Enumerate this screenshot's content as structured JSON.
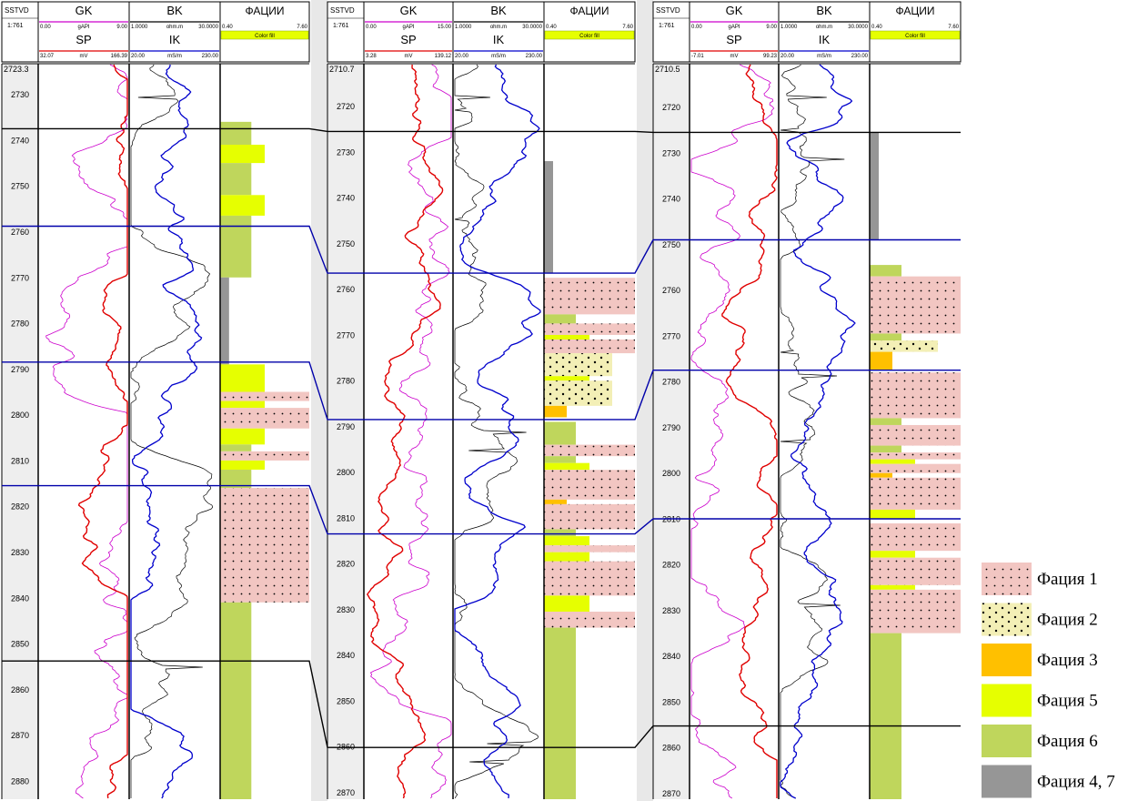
{
  "colors": {
    "gk": "#cc00cc",
    "sp": "#e00000",
    "bk": "#000000",
    "ik": "#0000cc",
    "facies_1": "#f2c6c2",
    "facies_2": "#f3efb6",
    "facies_3": "#ffc000",
    "facies_5": "#e6ff00",
    "facies_6": "#bfd65c",
    "facies_47": "#969696",
    "marker_blue": "#0000aa",
    "marker_black": "#000000",
    "gutter": "#e8e8e8",
    "header_bg": "#ffffff"
  },
  "chart_data": {
    "type": "well-log-correlation",
    "legend": [
      {
        "key": "f1",
        "label": "Фация 1",
        "pattern": "dots",
        "color": "#f2c6c2"
      },
      {
        "key": "f2",
        "label": "Фация 2",
        "pattern": "sparse-dots",
        "color": "#f3efb6"
      },
      {
        "key": "f3",
        "label": "Фация 3",
        "pattern": "solid",
        "color": "#ffc000"
      },
      {
        "key": "f5",
        "label": "Фация 5",
        "pattern": "solid",
        "color": "#e6ff00"
      },
      {
        "key": "f6",
        "label": "Фация 6",
        "pattern": "solid",
        "color": "#bfd65c"
      },
      {
        "key": "f47",
        "label": "Фация 4, 7",
        "pattern": "solid",
        "color": "#969696"
      }
    ],
    "wells": [
      {
        "depth_label": "SSTVD",
        "scale": "1:761",
        "top_depth_label": "2723.3",
        "depth_range": [
          2723.3,
          2884
        ],
        "depth_ticks": [
          2730,
          2740,
          2750,
          2760,
          2770,
          2780,
          2790,
          2800,
          2810,
          2820,
          2830,
          2840,
          2850,
          2860,
          2870,
          2880
        ],
        "curves": {
          "gk": {
            "name": "GK",
            "unit": "gAPI",
            "min": "0.00",
            "max": "9.00"
          },
          "sp": {
            "name": "SP",
            "unit": "mV",
            "min": "32.07",
            "max": "166.39"
          },
          "bk": {
            "name": "BK",
            "unit": "ohm.m",
            "min": "1.0000",
            "max": "30.0000"
          },
          "ik": {
            "name": "IK",
            "unit": "mS/m",
            "min": "20.00",
            "max": "230.00"
          }
        },
        "facies_title": "ФАЦИИ",
        "facies_min": "0.40",
        "facies_max": "7.60",
        "color_fill_label": "Color fill",
        "markers": [
          {
            "depth": 2737.5,
            "color": "black"
          },
          {
            "depth": 2758.8,
            "color": "blue"
          },
          {
            "depth": 2788.5,
            "color": "blue"
          },
          {
            "depth": 2815.5,
            "color": "blue"
          },
          {
            "depth": 2853.8,
            "color": "black"
          }
        ],
        "facies": [
          {
            "top": 2736,
            "bottom": 2741,
            "code": "f6"
          },
          {
            "top": 2741,
            "bottom": 2745,
            "code": "f5"
          },
          {
            "top": 2745,
            "bottom": 2752,
            "code": "f6"
          },
          {
            "top": 2752,
            "bottom": 2756.5,
            "code": "f5"
          },
          {
            "top": 2756.5,
            "bottom": 2770,
            "code": "f6"
          },
          {
            "top": 2770,
            "bottom": 2789,
            "code": "f47"
          },
          {
            "top": 2789,
            "bottom": 2795,
            "code": "f5"
          },
          {
            "top": 2795,
            "bottom": 2797,
            "code": "f1"
          },
          {
            "top": 2797,
            "bottom": 2798.5,
            "code": "f5"
          },
          {
            "top": 2798.5,
            "bottom": 2803,
            "code": "f1"
          },
          {
            "top": 2803,
            "bottom": 2806.5,
            "code": "f5"
          },
          {
            "top": 2806.5,
            "bottom": 2808,
            "code": "f6"
          },
          {
            "top": 2808,
            "bottom": 2810,
            "code": "f1"
          },
          {
            "top": 2810,
            "bottom": 2812,
            "code": "f5"
          },
          {
            "top": 2812,
            "bottom": 2816,
            "code": "f6"
          },
          {
            "top": 2816,
            "bottom": 2841,
            "code": "f1"
          },
          {
            "top": 2841,
            "bottom": 2884,
            "code": "f6"
          }
        ]
      },
      {
        "depth_label": "SSTVD",
        "scale": "1:761",
        "top_depth_label": "2710.7",
        "depth_range": [
          2710.7,
          2871.5
        ],
        "depth_ticks": [
          2720,
          2730,
          2740,
          2750,
          2760,
          2770,
          2780,
          2790,
          2800,
          2810,
          2820,
          2830,
          2840,
          2850,
          2860,
          2870
        ],
        "curves": {
          "gk": {
            "name": "GK",
            "unit": "gAPI",
            "min": "0.00",
            "max": "15.00"
          },
          "sp": {
            "name": "SP",
            "unit": "mV",
            "min": "3.28",
            "max": "139.12"
          },
          "bk": {
            "name": "BK",
            "unit": "ohm.m",
            "min": "1.0000",
            "max": "30.0000"
          },
          "ik": {
            "name": "IK",
            "unit": "mS/m",
            "min": "20.00",
            "max": "230.00"
          }
        },
        "facies_title": "ФАЦИИ",
        "facies_min": "0.40",
        "facies_max": "7.60",
        "color_fill_label": "Color fill",
        "markers": [
          {
            "depth": 2725.5,
            "color": "black"
          },
          {
            "depth": 2756.5,
            "color": "blue"
          },
          {
            "depth": 2788.5,
            "color": "blue"
          },
          {
            "depth": 2813.5,
            "color": "blue"
          },
          {
            "depth": 2860.2,
            "color": "black"
          }
        ],
        "facies": [
          {
            "top": 2732,
            "bottom": 2756.5,
            "code": "f47"
          },
          {
            "top": 2757.5,
            "bottom": 2765.5,
            "code": "f1"
          },
          {
            "top": 2765.5,
            "bottom": 2767.5,
            "code": "f6"
          },
          {
            "top": 2767.5,
            "bottom": 2770,
            "code": "f1"
          },
          {
            "top": 2770,
            "bottom": 2771,
            "code": "f5"
          },
          {
            "top": 2771,
            "bottom": 2774,
            "code": "f1"
          },
          {
            "top": 2774,
            "bottom": 2779,
            "code": "f2"
          },
          {
            "top": 2779,
            "bottom": 2780,
            "code": "f5"
          },
          {
            "top": 2780,
            "bottom": 2785.5,
            "code": "f2"
          },
          {
            "top": 2785.5,
            "bottom": 2788,
            "code": "f3"
          },
          {
            "top": 2789,
            "bottom": 2794,
            "code": "f6"
          },
          {
            "top": 2794,
            "bottom": 2796.5,
            "code": "f1"
          },
          {
            "top": 2796.5,
            "bottom": 2798,
            "code": "f6"
          },
          {
            "top": 2798,
            "bottom": 2799.5,
            "code": "f5"
          },
          {
            "top": 2799.5,
            "bottom": 2806,
            "code": "f1"
          },
          {
            "top": 2806,
            "bottom": 2807,
            "code": "f3"
          },
          {
            "top": 2807,
            "bottom": 2812.5,
            "code": "f1"
          },
          {
            "top": 2812.5,
            "bottom": 2814,
            "code": "f6"
          },
          {
            "top": 2814,
            "bottom": 2816,
            "code": "f5"
          },
          {
            "top": 2816,
            "bottom": 2817.5,
            "code": "f1"
          },
          {
            "top": 2817.5,
            "bottom": 2819.5,
            "code": "f5"
          },
          {
            "top": 2819.5,
            "bottom": 2827,
            "code": "f1"
          },
          {
            "top": 2827,
            "bottom": 2830.5,
            "code": "f5"
          },
          {
            "top": 2830.5,
            "bottom": 2834,
            "code": "f1"
          },
          {
            "top": 2834,
            "bottom": 2871.5,
            "code": "f6"
          }
        ]
      },
      {
        "depth_label": "SSTVD",
        "scale": "1:761",
        "top_depth_label": "2710.5",
        "depth_range": [
          2710.5,
          2871.3
        ],
        "depth_ticks": [
          2720,
          2730,
          2740,
          2750,
          2760,
          2770,
          2780,
          2790,
          2800,
          2810,
          2820,
          2830,
          2840,
          2850,
          2860,
          2870
        ],
        "curves": {
          "gk": {
            "name": "GK",
            "unit": "gAPI",
            "min": "0.00",
            "max": "9.00"
          },
          "sp": {
            "name": "SP",
            "unit": "mV",
            "min": "-7.01",
            "max": "99.23"
          },
          "bk": {
            "name": "BK",
            "unit": "ohm.m",
            "min": "1.0000",
            "max": "30.0000"
          },
          "ik": {
            "name": "IK",
            "unit": "mS/m",
            "min": "20.00",
            "max": "230.00"
          }
        },
        "facies_title": "ФАЦИИ",
        "facies_min": "0.40",
        "facies_max": "7.60",
        "color_fill_label": "Color fill",
        "markers": [
          {
            "depth": 2725.5,
            "color": "black"
          },
          {
            "depth": 2749,
            "color": "blue"
          },
          {
            "depth": 2777.5,
            "color": "blue"
          },
          {
            "depth": 2810,
            "color": "blue"
          },
          {
            "depth": 2855.3,
            "color": "black"
          }
        ],
        "facies": [
          {
            "top": 2725.5,
            "bottom": 2749,
            "code": "f47"
          },
          {
            "top": 2754.5,
            "bottom": 2757,
            "code": "f6"
          },
          {
            "top": 2757,
            "bottom": 2769.5,
            "code": "f1"
          },
          {
            "top": 2769.5,
            "bottom": 2771,
            "code": "f6"
          },
          {
            "top": 2771,
            "bottom": 2773.5,
            "code": "f2"
          },
          {
            "top": 2773.5,
            "bottom": 2777.5,
            "code": "f3"
          },
          {
            "top": 2778,
            "bottom": 2788,
            "code": "f1"
          },
          {
            "top": 2788,
            "bottom": 2789.5,
            "code": "f6"
          },
          {
            "top": 2789.5,
            "bottom": 2794,
            "code": "f1"
          },
          {
            "top": 2794,
            "bottom": 2795.5,
            "code": "f6"
          },
          {
            "top": 2795.5,
            "bottom": 2797,
            "code": "f1"
          },
          {
            "top": 2797,
            "bottom": 2798,
            "code": "f5"
          },
          {
            "top": 2798,
            "bottom": 2800,
            "code": "f1"
          },
          {
            "top": 2800,
            "bottom": 2801,
            "code": "f3"
          },
          {
            "top": 2801,
            "bottom": 2808,
            "code": "f1"
          },
          {
            "top": 2808,
            "bottom": 2810,
            "code": "f5"
          },
          {
            "top": 2811,
            "bottom": 2817,
            "code": "f1"
          },
          {
            "top": 2817,
            "bottom": 2818.5,
            "code": "f5"
          },
          {
            "top": 2818.5,
            "bottom": 2824.5,
            "code": "f1"
          },
          {
            "top": 2824.5,
            "bottom": 2825.5,
            "code": "f5"
          },
          {
            "top": 2825.5,
            "bottom": 2835,
            "code": "f1"
          },
          {
            "top": 2835,
            "bottom": 2871.3,
            "code": "f6"
          }
        ]
      }
    ]
  }
}
